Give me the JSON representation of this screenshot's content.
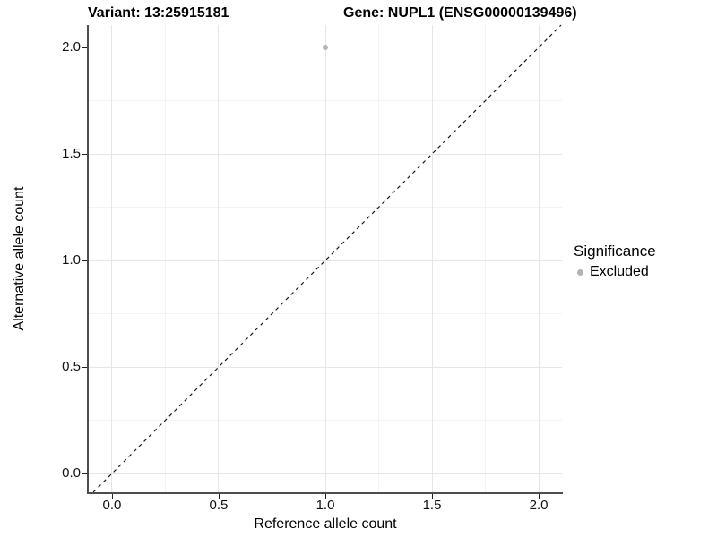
{
  "chart_data": {
    "type": "scatter",
    "title_variant": "Variant: 13:25915181",
    "title_gene": "Gene: NUPL1 (ENSG00000139496)",
    "xlabel": "Reference allele count",
    "ylabel": "Alternative allele count",
    "x_tick_values": [
      0.0,
      0.5,
      1.0,
      1.5,
      2.0
    ],
    "x_tick_labels": [
      "0.0",
      "0.5",
      "1.0",
      "1.5",
      "2.0"
    ],
    "y_tick_values": [
      0.0,
      0.5,
      1.0,
      1.5,
      2.0
    ],
    "y_tick_labels": [
      "0.0",
      "0.5",
      "1.0",
      "1.5",
      "2.0"
    ],
    "x_minor_ticks": [
      0.25,
      0.75,
      1.25,
      1.75
    ],
    "y_minor_ticks": [
      0.25,
      0.75,
      1.25,
      1.75
    ],
    "xlim": [
      -0.109,
      2.109
    ],
    "ylim": [
      -0.088,
      2.105
    ],
    "grid": true,
    "points": [
      {
        "x": 1.0,
        "y": 2.0,
        "significance": "Excluded"
      }
    ],
    "reference_line": {
      "slope": 1,
      "intercept": 0,
      "linetype": "dashed"
    },
    "legend": {
      "title": "Significance",
      "position": "right",
      "items": [
        {
          "label": "Excluded",
          "color": "#b3b3b3"
        }
      ]
    },
    "colors": {
      "point_default": "#b3b3b3",
      "grid_major": "#e6e6e6",
      "grid_minor": "#f3f3f3",
      "axis_line": "#4d4d4d",
      "tick_mark": "#222222",
      "reference_line": "#1a1a1a",
      "text": "#000000"
    }
  }
}
